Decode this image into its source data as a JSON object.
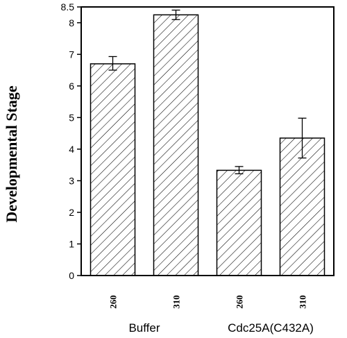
{
  "chart_data": {
    "type": "bar",
    "ylabel": "Developmental Stage",
    "xlabel": "",
    "ylim": [
      0,
      8.5
    ],
    "yticks": [
      0,
      1,
      2,
      3,
      4,
      5,
      6,
      7,
      8,
      8.5
    ],
    "ytick_labels": [
      "0",
      "1",
      "2",
      "3",
      "4",
      "5",
      "6",
      "7",
      "8",
      "8.5"
    ],
    "grid": false,
    "categories": [
      "260",
      "310",
      "260",
      "310"
    ],
    "groups": [
      {
        "label": "Buffer",
        "category_indices": [
          0,
          1
        ]
      },
      {
        "label": "Cdc25A(C432A)",
        "category_indices": [
          2,
          3
        ]
      }
    ],
    "values": [
      6.7,
      8.25,
      3.33,
      4.35
    ],
    "error_low": [
      6.5,
      8.1,
      3.22,
      3.72
    ],
    "error_high": [
      6.93,
      8.4,
      3.45,
      4.98
    ],
    "bar_fill": "hatched",
    "colors": {
      "stroke": "#000000",
      "background": "#ffffff"
    }
  }
}
